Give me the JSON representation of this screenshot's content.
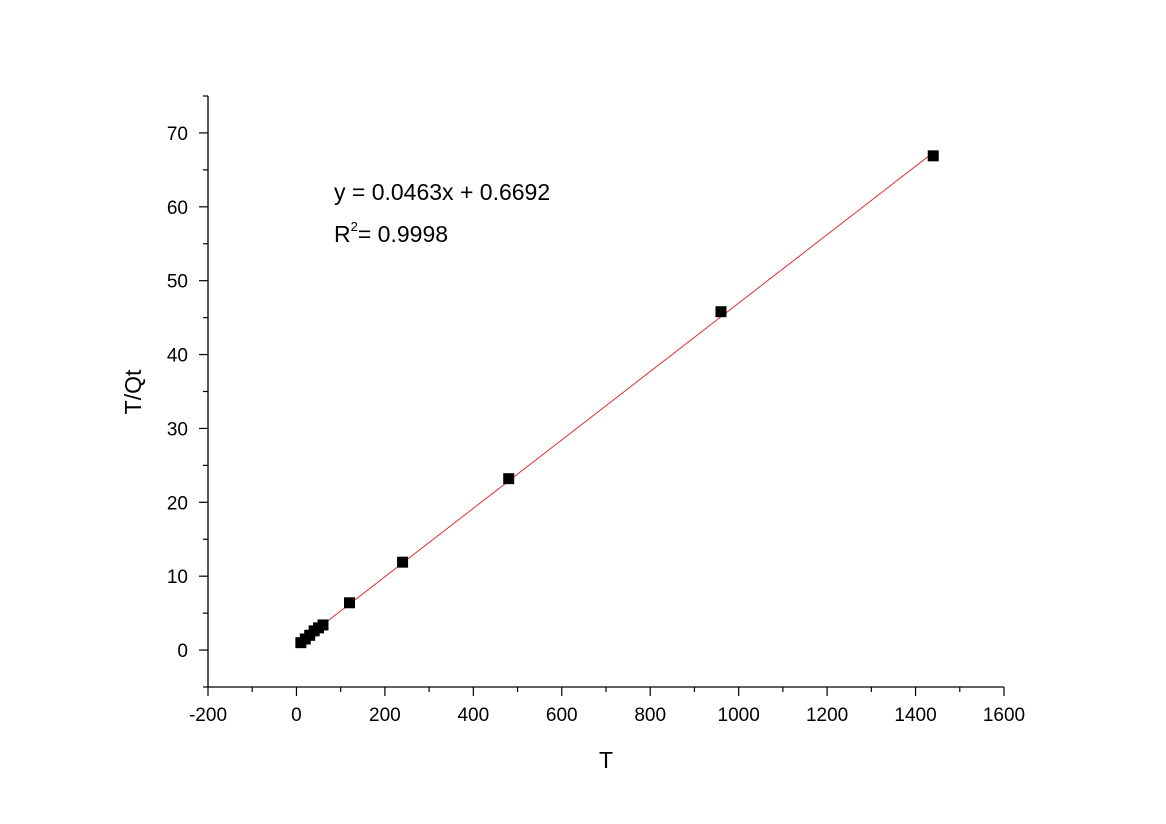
{
  "chart_data": {
    "type": "scatter",
    "xlabel": "T",
    "ylabel": "T/Qt",
    "xlim": [
      -200,
      1600
    ],
    "ylim": [
      -5,
      75
    ],
    "x_ticks": [
      -200,
      0,
      200,
      400,
      600,
      800,
      1000,
      1200,
      1400,
      1600
    ],
    "y_ticks": [
      0,
      10,
      20,
      30,
      40,
      50,
      60,
      70
    ],
    "grid": false,
    "legend": "none",
    "series": [
      {
        "marker": "square",
        "color": "#000000",
        "points": [
          {
            "x": 10,
            "y": 1.0
          },
          {
            "x": 20,
            "y": 1.5
          },
          {
            "x": 30,
            "y": 2.0
          },
          {
            "x": 40,
            "y": 2.6
          },
          {
            "x": 50,
            "y": 3.0
          },
          {
            "x": 60,
            "y": 3.4
          },
          {
            "x": 120,
            "y": 6.4
          },
          {
            "x": 240,
            "y": 11.9
          },
          {
            "x": 480,
            "y": 23.2
          },
          {
            "x": 960,
            "y": 45.8
          },
          {
            "x": 1440,
            "y": 66.9
          }
        ]
      }
    ],
    "fit_line": {
      "color": "#e03030",
      "slope": 0.0463,
      "intercept": 0.6692,
      "x_range": [
        30,
        1440
      ]
    },
    "annotations": {
      "equation": "y = 0.0463x + 0.6692",
      "r2_base": "R",
      "r2_sup": "2",
      "r2_rest": "= 0.9998"
    }
  }
}
